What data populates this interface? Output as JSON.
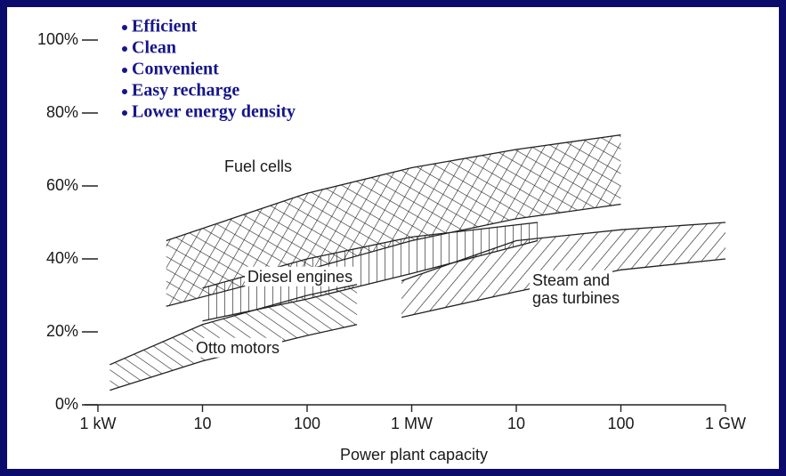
{
  "chart_data": {
    "type": "band",
    "xlabel": "Power plant capacity",
    "xscale": "log",
    "xlim": [
      1,
      1000000
    ],
    "xticks": [
      {
        "value": 1,
        "label": "1 kW"
      },
      10,
      100,
      {
        "value": 1000,
        "label": "1 MW"
      },
      {
        "value": 10000,
        "label": "10"
      },
      {
        "value": 100000,
        "label": "100"
      },
      {
        "value": 1000000,
        "label": "1 GW"
      }
    ],
    "ylim": [
      0,
      100
    ],
    "yticks": [
      {
        "value": 0,
        "label": "0%"
      },
      {
        "value": 20,
        "label": "20%"
      },
      {
        "value": 40,
        "label": "40%"
      },
      {
        "value": 60,
        "label": "60%"
      },
      {
        "value": 80,
        "label": "80%"
      },
      {
        "value": 100,
        "label": "100%"
      }
    ],
    "annotations": [
      "Efficient",
      "Clean",
      "Convenient",
      "Easy recharge",
      "Lower energy density"
    ],
    "series": [
      {
        "name": "Fuel cells",
        "hatch": "cross",
        "x": [
          4.5,
          100,
          1000,
          10000,
          100000
        ],
        "upper": [
          45,
          58,
          65,
          70,
          74
        ],
        "lower": [
          27,
          37,
          45,
          51,
          55
        ]
      },
      {
        "name": "Diesel engines",
        "hatch": "vertical",
        "x": [
          10,
          100,
          1000,
          16000
        ],
        "upper": [
          32,
          40,
          46,
          50
        ],
        "lower": [
          23,
          29,
          36,
          45
        ]
      },
      {
        "name": "Otto motors",
        "hatch": "forward",
        "x": [
          1.3,
          10,
          100,
          300
        ],
        "upper": [
          11,
          22,
          30,
          33
        ],
        "lower": [
          4,
          12,
          19,
          22
        ]
      },
      {
        "name": [
          "Steam and",
          "gas turbines"
        ],
        "hatch": "backward",
        "x": [
          800,
          10000,
          100000,
          1000000
        ],
        "upper": [
          34,
          45,
          48,
          50
        ],
        "lower": [
          24,
          31,
          37,
          40
        ]
      }
    ]
  }
}
